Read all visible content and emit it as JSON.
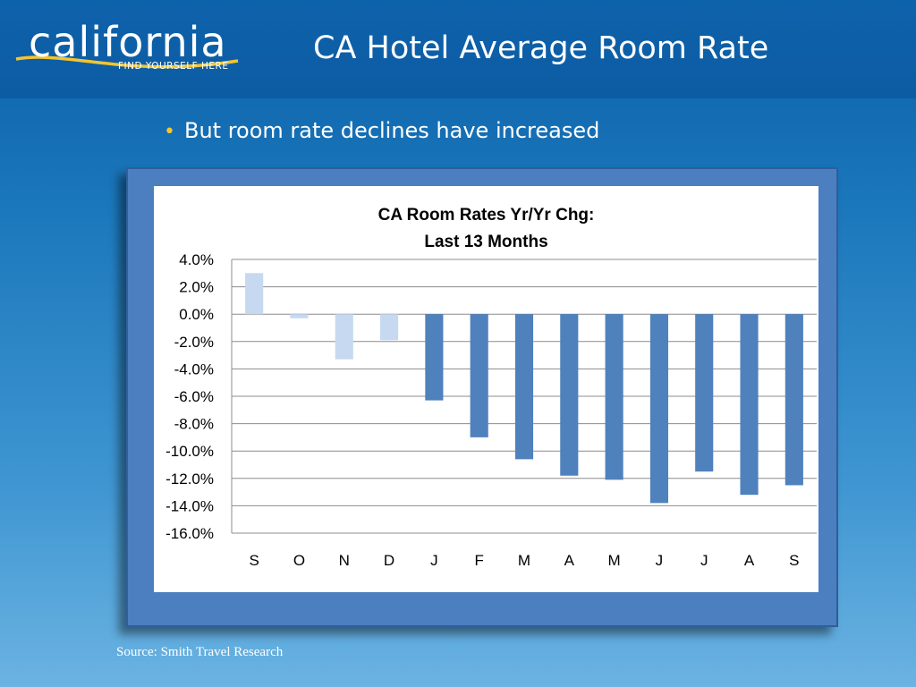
{
  "logo": {
    "word": "california",
    "tagline": "FIND YOURSELF HERE"
  },
  "slide": {
    "title": "CA Hotel Average Room Rate",
    "bullet": "But room rate declines have increased",
    "source": "Source:  Smith Travel Research"
  },
  "colors": {
    "background_top": "#0b5fa6",
    "background_bottom": "#6bb3e2",
    "frame": "#4b7fbf",
    "bar_light": "#c6d9f0",
    "bar_dark": "#4f81bd",
    "logo_swoosh": "#f2c531",
    "bullet": "#f2c531"
  },
  "chart_data": {
    "type": "bar",
    "title_lines": [
      "CA Room Rates Yr/Yr Chg:",
      "Last 13 Months"
    ],
    "categories": [
      "S",
      "O",
      "N",
      "D",
      "J",
      "F",
      "M",
      "A",
      "M",
      "J",
      "J",
      "A",
      "S"
    ],
    "values": [
      3.0,
      -0.3,
      -3.3,
      -1.9,
      -6.3,
      -9.0,
      -10.6,
      -11.8,
      -12.1,
      -13.8,
      -11.5,
      -13.2,
      -12.5
    ],
    "value_unit": "%",
    "bar_color_by_index": [
      "light",
      "light",
      "light",
      "light",
      "dark",
      "dark",
      "dark",
      "dark",
      "dark",
      "dark",
      "dark",
      "dark",
      "dark"
    ],
    "ylim": [
      -16,
      4
    ],
    "yticks": [
      4,
      2,
      0,
      -2,
      -4,
      -6,
      -8,
      -10,
      -12,
      -14,
      -16
    ],
    "ytick_labels": [
      "4.0%",
      "2.0%",
      "0.0%",
      "-2.0%",
      "-4.0%",
      "-6.0%",
      "-8.0%",
      "-10.0%",
      "-12.0%",
      "-14.0%",
      "-16.0%"
    ],
    "grid": true,
    "xlabel": "",
    "ylabel": "",
    "legend": false
  }
}
